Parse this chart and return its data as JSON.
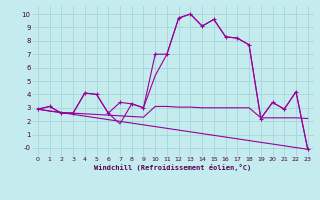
{
  "xlabel": "Windchill (Refroidissement éolien,°C)",
  "background_color": "#c4ecee",
  "grid_color": "#a8d4d8",
  "line_color": "#990099",
  "xlim": [
    -0.5,
    23.5
  ],
  "ylim": [
    -0.6,
    10.6
  ],
  "ytick_vals": [
    0,
    1,
    2,
    3,
    4,
    5,
    6,
    7,
    8,
    9,
    10
  ],
  "ytick_labels": [
    "-0",
    "1",
    "2",
    "3",
    "4",
    "5",
    "6",
    "7",
    "8",
    "9",
    "10"
  ],
  "xtick_vals": [
    0,
    1,
    2,
    3,
    4,
    5,
    6,
    7,
    8,
    9,
    10,
    11,
    12,
    13,
    14,
    15,
    16,
    17,
    18,
    19,
    20,
    21,
    22,
    23
  ],
  "curve1_x": [
    0,
    1,
    2,
    3,
    4,
    5,
    6,
    7,
    8,
    9,
    10,
    11,
    12,
    13,
    14,
    15,
    16,
    17,
    18,
    19,
    20,
    21,
    22,
    23
  ],
  "curve1_y": [
    2.9,
    3.1,
    2.6,
    2.6,
    4.1,
    4.0,
    2.6,
    3.4,
    3.3,
    3.0,
    7.0,
    7.0,
    9.7,
    10.0,
    9.1,
    9.6,
    8.3,
    8.2,
    7.7,
    2.2,
    3.4,
    2.9,
    4.2,
    -0.1
  ],
  "curve2_x": [
    0,
    1,
    2,
    3,
    4,
    5,
    6,
    7,
    8,
    9,
    10,
    11,
    12,
    13,
    14,
    15,
    16,
    17,
    18,
    19,
    20,
    21,
    22,
    23
  ],
  "curve2_y": [
    2.9,
    3.1,
    2.6,
    2.6,
    4.1,
    4.0,
    2.6,
    1.8,
    3.3,
    3.0,
    5.4,
    7.0,
    9.7,
    10.0,
    9.1,
    9.6,
    8.3,
    8.2,
    7.7,
    2.2,
    3.4,
    2.9,
    4.2,
    -0.1
  ],
  "curve3_x": [
    0,
    23
  ],
  "curve3_y": [
    2.9,
    -0.1
  ],
  "curve4_x": [
    0,
    1,
    2,
    3,
    4,
    5,
    6,
    7,
    8,
    9,
    10,
    11,
    12,
    13,
    14,
    15,
    16,
    17,
    18,
    19,
    20,
    21,
    22,
    23
  ],
  "curve4_y": [
    2.9,
    2.75,
    2.65,
    2.6,
    2.55,
    2.5,
    2.45,
    2.4,
    2.35,
    2.3,
    3.1,
    3.1,
    3.05,
    3.05,
    3.0,
    3.0,
    3.0,
    3.0,
    3.0,
    2.25,
    2.25,
    2.25,
    2.25,
    2.2
  ]
}
